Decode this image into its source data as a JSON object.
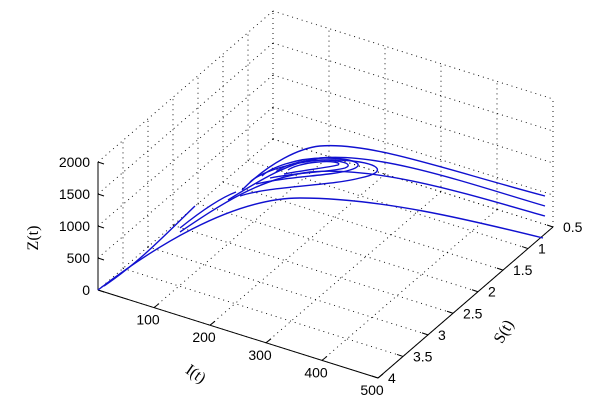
{
  "chart_data": {
    "type": "line3d",
    "xlabel": "I(t)",
    "ylabel": "S(t)",
    "zlabel": "Z(t)",
    "xlim": [
      0,
      500
    ],
    "ylim": [
      0.5,
      4
    ],
    "zlim": [
      0,
      2000
    ],
    "x_ticks": [
      "100",
      "200",
      "300",
      "400",
      "500"
    ],
    "y_ticks": [
      "0.5",
      "1",
      "1.5",
      "2",
      "2.5",
      "3",
      "3.5",
      "4"
    ],
    "z_ticks": [
      "0",
      "500",
      "1000",
      "1500",
      "2000"
    ],
    "grid": true,
    "series_color": "#1010d0",
    "trajectory_shape": {
      "type": "damped spiral converging to a loop near I≈230, S≈0.9, Z≈1900",
      "outer_arc_peak_Z": 1400,
      "inner_limit_Z": 1900
    }
  }
}
